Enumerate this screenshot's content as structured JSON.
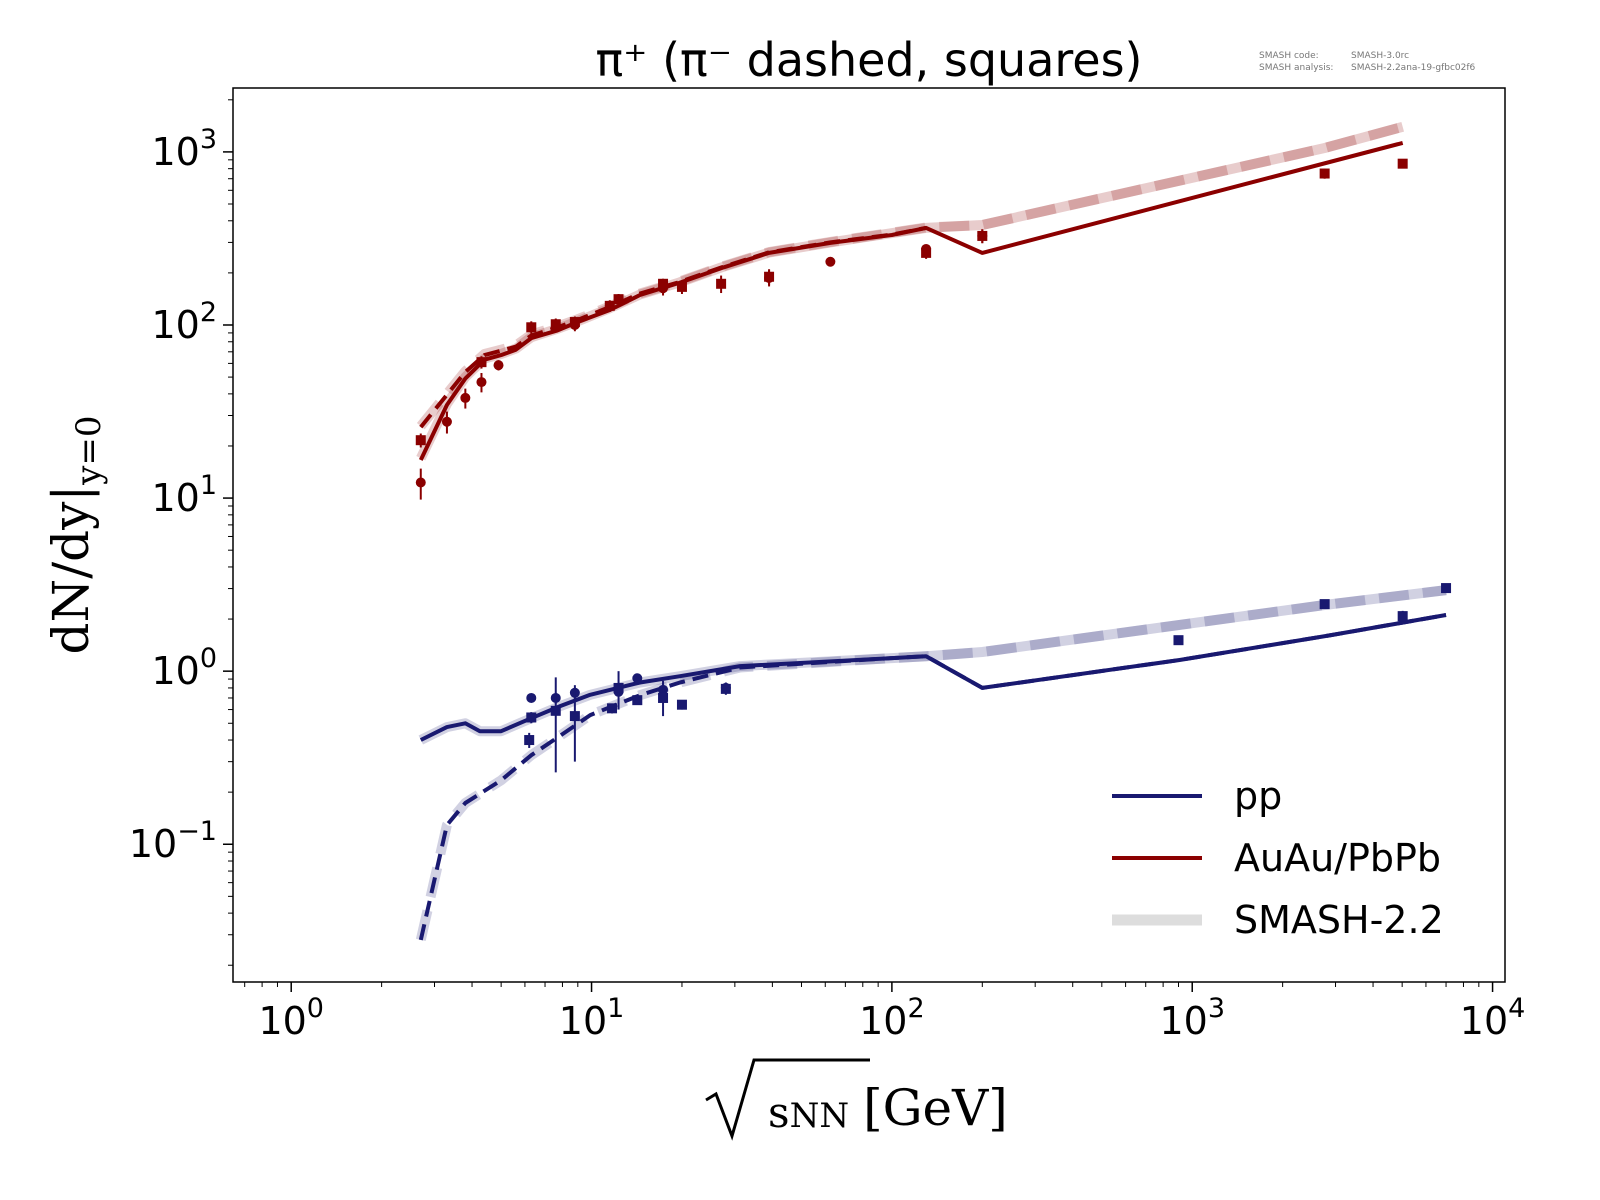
{
  "chart_data": {
    "type": "line",
    "title": "π⁺ (π⁻ dashed, squares)",
    "annotation": {
      "code_label": "SMASH code:",
      "code_value": "SMASH-3.0rc",
      "analysis_label": "SMASH analysis:",
      "analysis_value": "SMASH-2.2ana-19-gfbc02f6"
    },
    "xlabel": "√s_NN [GeV]",
    "xlabel_parts": {
      "sub": "s",
      "subsub": "NN",
      "unit": "[GeV]"
    },
    "ylabel": "dN/dy|y=0",
    "ylabel_parts": {
      "main": "dN/dy|",
      "sub": "y=0"
    },
    "xscale": "log",
    "yscale": "log",
    "xlim": [
      0.64,
      11000
    ],
    "ylim": [
      0.016,
      2340
    ],
    "xticks": [
      {
        "v": 1,
        "base": "10",
        "exp": "0"
      },
      {
        "v": 10,
        "base": "10",
        "exp": "1"
      },
      {
        "v": 100,
        "base": "10",
        "exp": "2"
      },
      {
        "v": 1000,
        "base": "10",
        "exp": "3"
      },
      {
        "v": 10000,
        "base": "10",
        "exp": "4"
      }
    ],
    "yticks": [
      {
        "v": 0.1,
        "base": "10",
        "exp": "−1"
      },
      {
        "v": 1,
        "base": "10",
        "exp": "0"
      },
      {
        "v": 10,
        "base": "10",
        "exp": "1"
      },
      {
        "v": 100,
        "base": "10",
        "exp": "2"
      },
      {
        "v": 1000,
        "base": "10",
        "exp": "3"
      }
    ],
    "grid": false,
    "legend_placement": "lower-right",
    "legend": [
      {
        "label": "pp",
        "color": "#191970",
        "style": "solid"
      },
      {
        "label": "AuAu/PbPb",
        "color": "#8b0000",
        "style": "solid"
      },
      {
        "label": "SMASH-2.2",
        "color": "#dddddd",
        "style": "thick"
      }
    ],
    "colors": {
      "pp": "#191970",
      "AuAu": "#8b0000",
      "smash22": "#dddddd"
    },
    "lines": [
      {
        "system": "AuAu",
        "particle": "π+",
        "model": "SMASH-2.2",
        "dashed": false,
        "x": [
          2.7,
          3.3,
          3.8,
          4.4,
          5,
          5.6,
          6.3,
          7.7,
          9,
          11.5,
          14.5,
          19.6,
          27,
          39,
          62.4,
          130,
          200,
          2760,
          5020
        ],
        "y": [
          17,
          35,
          50,
          64,
          68,
          73,
          85,
          95,
          105,
          125,
          150,
          176,
          215,
          262,
          300,
          364,
          378,
          1054,
          1396
        ]
      },
      {
        "system": "AuAu",
        "particle": "π-",
        "model": "SMASH-2.2",
        "dashed": true,
        "x": [
          2.7,
          3.3,
          3.8,
          4.4,
          5,
          5.6,
          6.3,
          7.7,
          9,
          11.5,
          14.5,
          19.6,
          27,
          39,
          62.4,
          130,
          200,
          2760,
          5020
        ],
        "y": [
          26,
          40,
          54,
          68,
          72,
          76,
          88,
          98,
          108,
          128,
          152,
          178,
          217,
          264,
          302,
          366,
          378,
          1054,
          1396
        ]
      },
      {
        "system": "AuAu",
        "particle": "π+",
        "model": "SMASH-3.0rc",
        "dashed": false,
        "x": [
          2.7,
          3.3,
          3.8,
          4.4,
          5,
          5.6,
          6.3,
          7.7,
          9,
          11.5,
          14.5,
          19.6,
          27,
          39,
          62.4,
          100,
          130,
          200,
          5020
        ],
        "y": [
          16.6,
          34.5,
          49,
          63,
          67,
          72,
          84,
          93,
          104,
          122,
          149,
          175,
          213,
          261,
          298,
          331,
          364,
          261,
          1127
        ]
      },
      {
        "system": "AuAu",
        "particle": "π-",
        "model": "SMASH-3.0rc",
        "dashed": true,
        "x": [
          2.7,
          3.3,
          3.8,
          4.4,
          5,
          5.6,
          6.3,
          7.7,
          9,
          11.5,
          14.5,
          19.6,
          27,
          39,
          62.4,
          100,
          130
        ],
        "y": [
          25.7,
          39.5,
          53.5,
          67,
          71,
          75,
          87,
          97,
          107,
          127,
          152,
          177,
          215,
          263,
          300,
          333,
          364
        ]
      },
      {
        "system": "pp",
        "particle": "π+",
        "model": "SMASH-2.2",
        "dashed": false,
        "x": [
          2.7,
          3.3,
          3.8,
          4.25,
          5,
          6.3,
          7.9,
          9.9,
          14.5,
          19.7,
          31.2,
          100,
          130,
          200,
          2760,
          7000
        ],
        "y": [
          0.4,
          0.475,
          0.5,
          0.45,
          0.45,
          0.535,
          0.63,
          0.73,
          0.86,
          0.935,
          1.07,
          1.19,
          1.22,
          1.29,
          2.41,
          2.94
        ]
      },
      {
        "system": "pp",
        "particle": "π-",
        "model": "SMASH-2.2",
        "dashed": true,
        "x": [
          2.7,
          3.3,
          3.8,
          5,
          6.3,
          7.9,
          9.9,
          14.5,
          19.7,
          31.2,
          100,
          130,
          200,
          2760,
          7000
        ],
        "y": [
          0.028,
          0.129,
          0.173,
          0.234,
          0.327,
          0.426,
          0.557,
          0.726,
          0.86,
          1.05,
          1.19,
          1.22,
          1.29,
          2.41,
          2.94
        ]
      },
      {
        "system": "pp",
        "particle": "π+",
        "model": "SMASH-3.0rc",
        "dashed": false,
        "x": [
          2.7,
          3.3,
          3.8,
          4.25,
          5,
          6.3,
          7.9,
          9.9,
          14.5,
          19.7,
          31.2,
          100,
          130,
          200,
          908,
          2866,
          7000
        ],
        "y": [
          0.4,
          0.475,
          0.5,
          0.45,
          0.45,
          0.535,
          0.63,
          0.73,
          0.86,
          0.935,
          1.07,
          1.19,
          1.22,
          0.8,
          1.16,
          1.61,
          2.11
        ]
      },
      {
        "system": "pp",
        "particle": "π-",
        "model": "SMASH-3.0rc",
        "dashed": true,
        "x": [
          2.7,
          3.3,
          3.8,
          5,
          6.3,
          7.9,
          9.9,
          14.5,
          19.7,
          31.2,
          100,
          130,
          200,
          908,
          2866,
          7000
        ],
        "y": [
          0.028,
          0.129,
          0.173,
          0.234,
          0.327,
          0.426,
          0.557,
          0.726,
          0.86,
          1.05,
          1.19,
          1.22,
          0.8,
          1.16,
          1.61,
          2.11
        ]
      }
    ],
    "points": [
      {
        "system": "AuAu",
        "particle": "π+",
        "marker": "circle",
        "x": [
          2.7,
          3.3,
          3.8,
          4.3,
          4.9,
          8.8,
          17.3,
          39,
          62.4,
          130,
          200
        ],
        "y": [
          12.3,
          27.6,
          37.9,
          46.8,
          58.6,
          100,
          163,
          187,
          232,
          275,
          327
        ],
        "yerr": [
          2.5,
          4,
          5,
          6,
          4,
          8,
          15,
          20,
          10,
          15,
          30
        ]
      },
      {
        "system": "AuAu",
        "particle": "π-",
        "marker": "square",
        "x": [
          2.7,
          4.3,
          6.3,
          7.6,
          8.8,
          11.5,
          12.3,
          17.3,
          20,
          27,
          39,
          130,
          200,
          2760,
          5020
        ],
        "y": [
          21.6,
          61,
          97,
          101,
          104,
          129,
          141,
          173,
          166,
          173,
          190,
          261,
          327,
          750,
          855
        ],
        "yerr": [
          2,
          5,
          8,
          8,
          8,
          10,
          10,
          12,
          15,
          20,
          20,
          20,
          30,
          50,
          50
        ]
      },
      {
        "system": "pp",
        "particle": "π+",
        "marker": "circle",
        "x": [
          6.3,
          7.6,
          8.8,
          12.3,
          14.2,
          17.3,
          28
        ],
        "y": [
          0.7,
          0.7,
          0.75,
          0.76,
          0.91,
          0.78,
          0.8
        ],
        "yerr": [
          0.03,
          0.05,
          0.08,
          0.05,
          0.04,
          0.1,
          0.06
        ]
      },
      {
        "system": "pp",
        "particle": "π-",
        "marker": "square",
        "x": [
          6.2,
          6.3,
          7.6,
          8.8,
          11.7,
          12.3,
          14.2,
          17.3,
          20,
          28,
          900,
          2760,
          5020,
          7000
        ],
        "y": [
          0.4,
          0.54,
          0.59,
          0.55,
          0.61,
          0.8,
          0.68,
          0.7,
          0.64,
          0.79,
          1.51,
          2.44,
          2.08,
          3.02
        ],
        "yerr": [
          0.04,
          0.04,
          0.33,
          0.25,
          0.04,
          0.2,
          0.03,
          0.15,
          0.04,
          0.06,
          0.08,
          0.12,
          0.15,
          0.15
        ]
      }
    ]
  }
}
